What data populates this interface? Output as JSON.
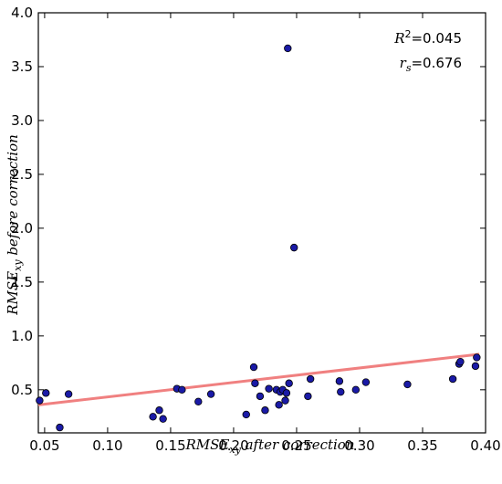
{
  "chart_data": {
    "type": "scatter",
    "title": "",
    "xlabel": "RMSE_xy after correction",
    "ylabel": "RMSE_xy before correction",
    "xlabel_parts": {
      "main": "RMSE",
      "sub": "xy",
      "rest": " after correction"
    },
    "ylabel_parts": {
      "main": "RMSE",
      "sub": "xy",
      "rest": " before correction"
    },
    "xlim": [
      0.045,
      0.4
    ],
    "ylim": [
      0.1,
      4.0
    ],
    "x_ticks": [
      0.05,
      0.1,
      0.15,
      0.2,
      0.25,
      0.3,
      0.35,
      0.4
    ],
    "x_tick_labels": [
      "0.05",
      "0.10",
      "0.15",
      "0.20",
      "0.25",
      "0.30",
      "0.35",
      "0.40"
    ],
    "y_ticks": [
      0.5,
      1.0,
      1.5,
      2.0,
      2.5,
      3.0,
      3.5,
      4.0
    ],
    "y_tick_labels": [
      "0.5",
      "1.0",
      "1.5",
      "2.0",
      "2.5",
      "3.0",
      "3.5",
      "4.0"
    ],
    "grid": false,
    "marker_color": "#1a1aa6",
    "fit_line_color": "#f08080",
    "points": [
      {
        "x": 0.046,
        "y": 0.4
      },
      {
        "x": 0.051,
        "y": 0.47
      },
      {
        "x": 0.062,
        "y": 0.15
      },
      {
        "x": 0.069,
        "y": 0.46
      },
      {
        "x": 0.136,
        "y": 0.25
      },
      {
        "x": 0.141,
        "y": 0.31
      },
      {
        "x": 0.144,
        "y": 0.23
      },
      {
        "x": 0.155,
        "y": 0.51
      },
      {
        "x": 0.159,
        "y": 0.5
      },
      {
        "x": 0.172,
        "y": 0.39
      },
      {
        "x": 0.182,
        "y": 0.46
      },
      {
        "x": 0.21,
        "y": 0.27
      },
      {
        "x": 0.216,
        "y": 0.71
      },
      {
        "x": 0.217,
        "y": 0.56
      },
      {
        "x": 0.221,
        "y": 0.44
      },
      {
        "x": 0.225,
        "y": 0.31
      },
      {
        "x": 0.228,
        "y": 0.51
      },
      {
        "x": 0.234,
        "y": 0.5
      },
      {
        "x": 0.236,
        "y": 0.36
      },
      {
        "x": 0.237,
        "y": 0.48
      },
      {
        "x": 0.239,
        "y": 0.5
      },
      {
        "x": 0.241,
        "y": 0.4
      },
      {
        "x": 0.242,
        "y": 0.47
      },
      {
        "x": 0.243,
        "y": 3.67
      },
      {
        "x": 0.244,
        "y": 0.56
      },
      {
        "x": 0.248,
        "y": 1.82
      },
      {
        "x": 0.259,
        "y": 0.44
      },
      {
        "x": 0.261,
        "y": 0.6
      },
      {
        "x": 0.284,
        "y": 0.58
      },
      {
        "x": 0.285,
        "y": 0.48
      },
      {
        "x": 0.297,
        "y": 0.5
      },
      {
        "x": 0.305,
        "y": 0.57
      },
      {
        "x": 0.338,
        "y": 0.55
      },
      {
        "x": 0.374,
        "y": 0.6
      },
      {
        "x": 0.379,
        "y": 0.74
      },
      {
        "x": 0.38,
        "y": 0.76
      },
      {
        "x": 0.392,
        "y": 0.72
      },
      {
        "x": 0.393,
        "y": 0.8
      }
    ],
    "fit_line": {
      "x": [
        0.045,
        0.395
      ],
      "y": [
        0.36,
        0.83
      ]
    },
    "annotations": [
      {
        "id": "r2",
        "main": "R",
        "sup": "2",
        "value": "=0.045",
        "text": "R^2=0.045",
        "placement": "top-right"
      },
      {
        "id": "rs",
        "main": "r",
        "sub": "s",
        "value": "=0.676",
        "text": "r_s=0.676",
        "placement": "top-right"
      }
    ]
  }
}
